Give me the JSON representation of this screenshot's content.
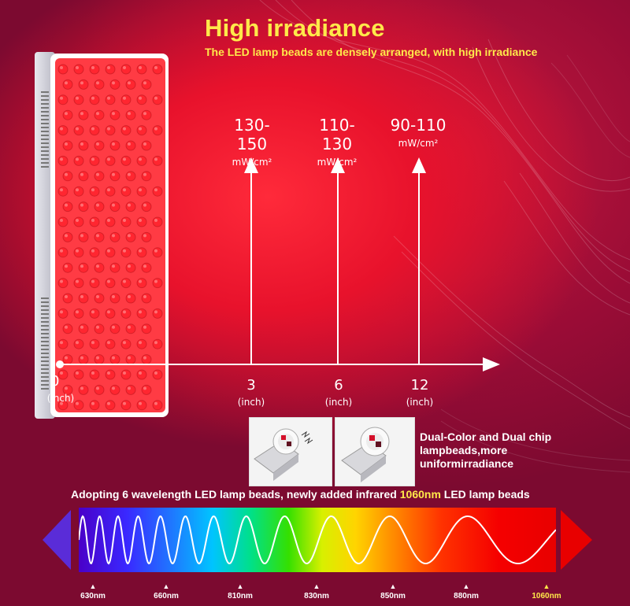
{
  "header": {
    "title": "High irradiance",
    "subtitle": "The LED lamp beads are densely arranged, with high irradiance"
  },
  "irradiance": [
    {
      "value": "130-150",
      "unit": "mW/cm²",
      "distance": "3",
      "distance_unit": "(inch)"
    },
    {
      "value": "110-130",
      "unit": "mW/cm²",
      "distance": "6",
      "distance_unit": "(inch)"
    },
    {
      "value": "90-110",
      "unit": "mW/cm²",
      "distance": "12",
      "distance_unit": "(inch)"
    }
  ],
  "origin": {
    "value": "0",
    "unit": "(inch)"
  },
  "chip": {
    "description_line1": "Dual-Color and Dual chip",
    "description_line2": "lampbeads,more",
    "description_line3": "uniformirradiance"
  },
  "wavelength": {
    "caption_before": "Adopting 6 wavelength LED lamp beads, newly added infrared ",
    "caption_highlight": "1060nm",
    "caption_after": " LED lamp beads",
    "labels": [
      "630nm",
      "660nm",
      "810nm",
      "830nm",
      "850nm",
      "880nm",
      "1060nm"
    ]
  },
  "colors": {
    "accent_yellow": "#ffe94a",
    "background_crimson": "#7c0a30",
    "glow_red": "#ff2a3a"
  }
}
